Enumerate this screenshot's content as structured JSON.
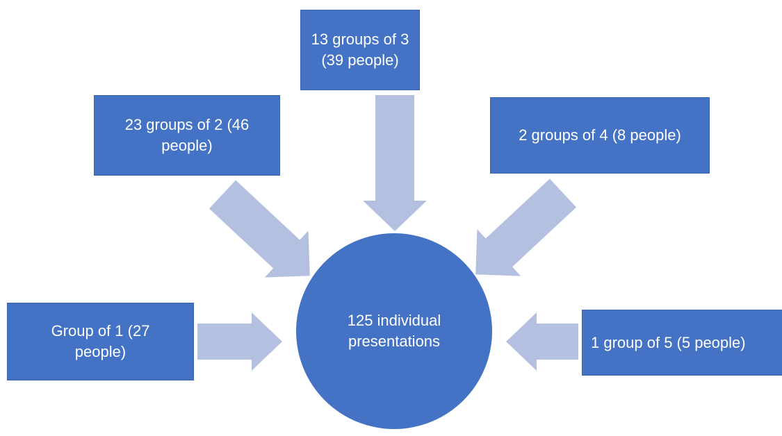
{
  "nodes": [
    {
      "label": "13 groups of 3 (39 people)"
    },
    {
      "label": "23 groups of 2 (46 people)"
    },
    {
      "label": "2 groups of 4 (8 people)"
    },
    {
      "label": "Group of 1 (27 people)"
    },
    {
      "label": "1 group of 5 (5 people)"
    }
  ],
  "center": {
    "label": "125 individual presentations"
  }
}
